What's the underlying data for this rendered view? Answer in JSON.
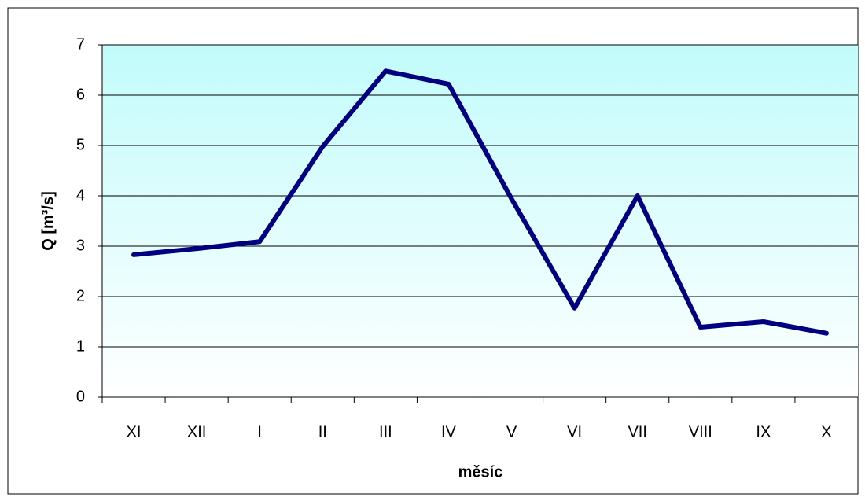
{
  "chart_data": {
    "type": "line",
    "x_label": "měsíc",
    "y_label": "Q [m³/s]",
    "categories": [
      "XI",
      "XII",
      "I",
      "II",
      "III",
      "IV",
      "V",
      "VI",
      "VII",
      "VIII",
      "IX",
      "X"
    ],
    "values": [
      2.83,
      2.95,
      3.09,
      4.98,
      6.48,
      6.22,
      3.94,
      1.77,
      4.0,
      1.39,
      1.5,
      1.27
    ],
    "color": "#000080",
    "ylim": [
      0,
      7
    ],
    "yticks": [
      0,
      1,
      2,
      3,
      4,
      5,
      6,
      7
    ],
    "grid": true
  }
}
